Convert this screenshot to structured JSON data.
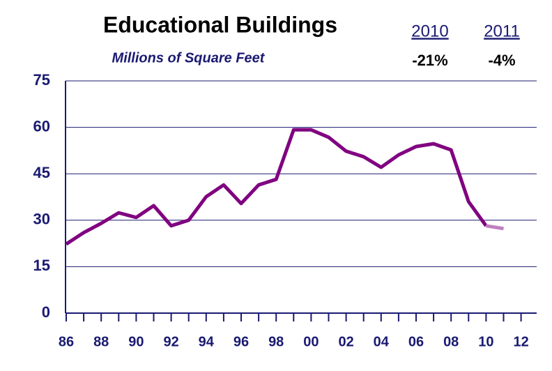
{
  "chart_data": {
    "type": "line",
    "title": "Educational Buildings",
    "subtitle": "Millions of Square Feet",
    "annotations": [
      {
        "label": "2010",
        "value": "-21%"
      },
      {
        "label": "2011",
        "value": "-4%"
      }
    ],
    "categories": [
      "86",
      null,
      "88",
      null,
      "90",
      null,
      "92",
      null,
      "94",
      null,
      "96",
      null,
      "98",
      null,
      "00",
      null,
      "02",
      null,
      "04",
      null,
      "06",
      null,
      "08",
      null,
      "10",
      null,
      "12"
    ],
    "series": [
      {
        "color": "#800080",
        "values": [
          22.3,
          26,
          29,
          32.4,
          30.9,
          34.7,
          28.2,
          30,
          37.6,
          41.4,
          35.4,
          41.4,
          43.2,
          59.2,
          59.2,
          56.8,
          52.3,
          50.5,
          47.1,
          51.1,
          53.8,
          54.7,
          52.7,
          36,
          28.2,
          null,
          null
        ]
      },
      {
        "color": "#c080c0",
        "values": [
          null,
          null,
          null,
          null,
          null,
          null,
          null,
          null,
          null,
          null,
          null,
          null,
          null,
          null,
          null,
          null,
          null,
          null,
          null,
          null,
          null,
          null,
          null,
          null,
          28.2,
          27.3,
          null
        ]
      }
    ],
    "ylim": [
      0,
      75
    ],
    "yticks": [
      0,
      15,
      30,
      45,
      60,
      75
    ],
    "grid": true
  }
}
